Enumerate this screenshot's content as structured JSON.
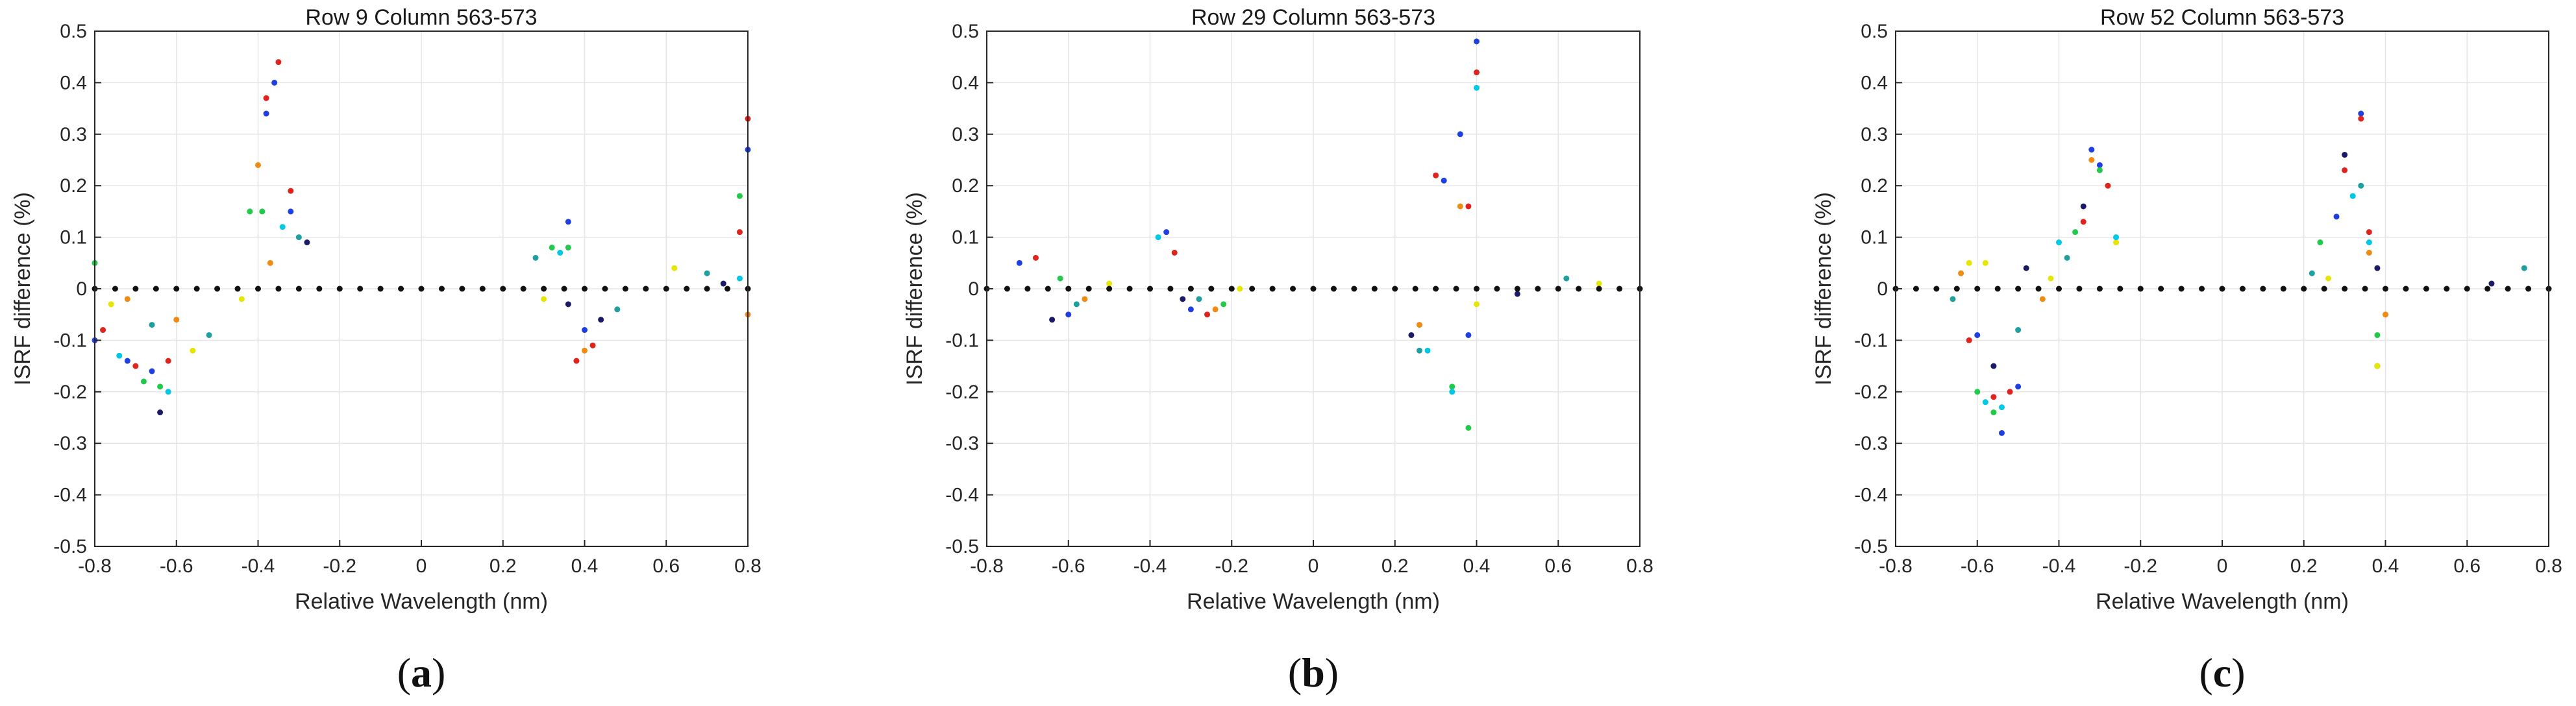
{
  "chart_data": [
    {
      "type": "scatter",
      "title": "Row 9 Column 563-573",
      "xlabel": "Relative Wavelength (nm)",
      "ylabel": "ISRF difference (%)",
      "xlim": [
        -0.8,
        0.8
      ],
      "ylim": [
        -0.5,
        0.5
      ],
      "xticks": [
        "-0.8",
        "-0.6",
        "-0.4",
        "-0.2",
        "0",
        "0.2",
        "0.4",
        "0.6",
        "0.8"
      ],
      "yticks": [
        "0.5",
        "0.4",
        "0.3",
        "0.2",
        "0.1",
        "0",
        "-0.1",
        "-0.2",
        "-0.3",
        "-0.4",
        "-0.5"
      ],
      "grid": true,
      "caption": "a",
      "series": [
        {
          "name": "blue",
          "color": "#1f3fe0",
          "x": [
            -0.8,
            -0.72,
            -0.66,
            -0.38,
            -0.36,
            -0.32,
            0.36,
            0.4,
            0.8
          ],
          "y": [
            -0.1,
            -0.14,
            -0.16,
            0.34,
            0.4,
            0.15,
            0.13,
            -0.08,
            0.27
          ]
        },
        {
          "name": "red",
          "color": "#e0231c",
          "x": [
            -0.78,
            -0.7,
            -0.62,
            -0.38,
            -0.35,
            -0.32,
            0.38,
            0.42,
            0.78,
            0.8
          ],
          "y": [
            -0.08,
            -0.15,
            -0.14,
            0.37,
            0.44,
            0.19,
            -0.14,
            -0.11,
            0.11,
            0.33
          ]
        },
        {
          "name": "green",
          "color": "#22c94a",
          "x": [
            -0.8,
            -0.68,
            -0.64,
            -0.42,
            -0.39,
            0.32,
            0.36,
            0.78
          ],
          "y": [
            0.05,
            -0.18,
            -0.19,
            0.15,
            0.15,
            0.08,
            0.08,
            0.18
          ]
        },
        {
          "name": "orange",
          "color": "#f08a10",
          "x": [
            -0.72,
            -0.6,
            -0.4,
            -0.37,
            0.4,
            0.8
          ],
          "y": [
            -0.02,
            -0.06,
            0.24,
            0.05,
            -0.12,
            -0.05
          ]
        },
        {
          "name": "yellow",
          "color": "#e6e600",
          "x": [
            -0.76,
            -0.56,
            -0.44,
            0.3,
            0.62
          ],
          "y": [
            -0.03,
            -0.12,
            -0.02,
            -0.02,
            0.04
          ]
        },
        {
          "name": "cyan",
          "color": "#00c8e6",
          "x": [
            -0.74,
            -0.62,
            -0.34,
            0.34,
            0.78
          ],
          "y": [
            -0.13,
            -0.2,
            0.12,
            0.07,
            0.02
          ]
        },
        {
          "name": "teal",
          "color": "#1ea0a0",
          "x": [
            -0.66,
            -0.52,
            -0.3,
            0.28,
            0.48,
            0.7
          ],
          "y": [
            -0.07,
            -0.09,
            0.1,
            0.06,
            -0.04,
            0.03
          ]
        },
        {
          "name": "navy",
          "color": "#1a1a66",
          "x": [
            -0.64,
            -0.28,
            0.36,
            0.44,
            0.74
          ],
          "y": [
            -0.24,
            0.09,
            -0.03,
            -0.06,
            0.01
          ]
        },
        {
          "name": "black",
          "color": "#111111",
          "x": [
            -0.8,
            -0.75,
            -0.7,
            -0.65,
            -0.6,
            -0.55,
            -0.5,
            -0.45,
            -0.4,
            -0.35,
            -0.3,
            -0.25,
            -0.2,
            -0.15,
            -0.1,
            -0.05,
            0,
            0.05,
            0.1,
            0.15,
            0.2,
            0.25,
            0.3,
            0.35,
            0.4,
            0.45,
            0.5,
            0.55,
            0.6,
            0.65,
            0.7,
            0.75,
            0.8
          ],
          "y": [
            0,
            0,
            0,
            0,
            0,
            0,
            0,
            0,
            0,
            0,
            0,
            0,
            0,
            0,
            0,
            0,
            0,
            0,
            0,
            0,
            0,
            0,
            0,
            0,
            0,
            0,
            0,
            0,
            0,
            0,
            0,
            0,
            0
          ]
        }
      ]
    },
    {
      "type": "scatter",
      "title": "Row 29 Column 563-573",
      "xlabel": "Relative Wavelength (nm)",
      "ylabel": "ISRF difference (%)",
      "xlim": [
        -0.8,
        0.8
      ],
      "ylim": [
        -0.5,
        0.5
      ],
      "xticks": [
        "-0.8",
        "-0.6",
        "-0.4",
        "-0.2",
        "0",
        "0.2",
        "0.4",
        "0.6",
        "0.8"
      ],
      "yticks": [
        "0.5",
        "0.4",
        "0.3",
        "0.2",
        "0.1",
        "0",
        "-0.1",
        "-0.2",
        "-0.3",
        "-0.4",
        "-0.5"
      ],
      "grid": true,
      "caption": "b",
      "series": [
        {
          "name": "blue",
          "color": "#1f3fe0",
          "x": [
            -0.72,
            -0.6,
            -0.36,
            -0.3,
            0.32,
            0.36,
            0.38,
            0.4
          ],
          "y": [
            0.05,
            -0.05,
            0.11,
            -0.04,
            0.21,
            0.3,
            -0.09,
            0.48
          ]
        },
        {
          "name": "red",
          "color": "#e0231c",
          "x": [
            -0.68,
            -0.34,
            -0.26,
            0.3,
            0.38,
            0.4
          ],
          "y": [
            0.06,
            0.07,
            -0.05,
            0.22,
            0.16,
            0.42
          ]
        },
        {
          "name": "green",
          "color": "#22c94a",
          "x": [
            -0.62,
            -0.22,
            0.34,
            0.38
          ],
          "y": [
            0.02,
            -0.03,
            -0.19,
            -0.27
          ]
        },
        {
          "name": "orange",
          "color": "#f08a10",
          "x": [
            -0.56,
            -0.24,
            0.26,
            0.36
          ],
          "y": [
            -0.02,
            -0.04,
            -0.07,
            0.16
          ]
        },
        {
          "name": "yellow",
          "color": "#e6e600",
          "x": [
            -0.5,
            -0.18,
            0.4,
            0.7
          ],
          "y": [
            0.01,
            0.0,
            -0.03,
            0.01
          ]
        },
        {
          "name": "cyan",
          "color": "#00c8e6",
          "x": [
            -0.38,
            0.28,
            0.34,
            0.4
          ],
          "y": [
            0.1,
            -0.12,
            -0.2,
            0.39
          ]
        },
        {
          "name": "teal",
          "color": "#1ea0a0",
          "x": [
            -0.58,
            -0.28,
            0.26,
            0.62
          ],
          "y": [
            -0.03,
            -0.02,
            -0.12,
            0.02
          ]
        },
        {
          "name": "navy",
          "color": "#1a1a66",
          "x": [
            -0.64,
            -0.32,
            0.24,
            0.5
          ],
          "y": [
            -0.06,
            -0.02,
            -0.09,
            -0.01
          ]
        },
        {
          "name": "black",
          "color": "#111111",
          "x": [
            -0.8,
            -0.75,
            -0.7,
            -0.65,
            -0.6,
            -0.55,
            -0.5,
            -0.45,
            -0.4,
            -0.35,
            -0.3,
            -0.25,
            -0.2,
            -0.15,
            -0.1,
            -0.05,
            0,
            0.05,
            0.1,
            0.15,
            0.2,
            0.25,
            0.3,
            0.35,
            0.4,
            0.45,
            0.5,
            0.55,
            0.6,
            0.65,
            0.7,
            0.75,
            0.8
          ],
          "y": [
            0,
            0,
            0,
            0,
            0,
            0,
            0,
            0,
            0,
            0,
            0,
            0,
            0,
            0,
            0,
            0,
            0,
            0,
            0,
            0,
            0,
            0,
            0,
            0,
            0,
            0,
            0,
            0,
            0,
            0,
            0,
            0,
            0
          ]
        }
      ]
    },
    {
      "type": "scatter",
      "title": "Row 52 Column 563-573",
      "xlabel": "Relative Wavelength (nm)",
      "ylabel": "ISRF difference (%)",
      "xlim": [
        -0.8,
        0.8
      ],
      "ylim": [
        -0.5,
        0.5
      ],
      "xticks": [
        "-0.8",
        "-0.6",
        "-0.4",
        "-0.2",
        "0",
        "0.2",
        "0.4",
        "0.6",
        "0.8"
      ],
      "yticks": [
        "0.5",
        "0.4",
        "0.3",
        "0.2",
        "0.1",
        "0",
        "-0.1",
        "-0.2",
        "-0.3",
        "-0.4",
        "-0.5"
      ],
      "grid": true,
      "caption": "c",
      "series": [
        {
          "name": "blue",
          "color": "#1f3fe0",
          "x": [
            -0.6,
            -0.54,
            -0.5,
            -0.32,
            -0.3,
            0.28,
            0.34,
            0.38
          ],
          "y": [
            -0.09,
            -0.28,
            -0.19,
            0.27,
            0.24,
            0.14,
            0.34,
            -0.15
          ]
        },
        {
          "name": "red",
          "color": "#e0231c",
          "x": [
            -0.62,
            -0.56,
            -0.52,
            -0.34,
            -0.28,
            0.3,
            0.34,
            0.36
          ],
          "y": [
            -0.1,
            -0.21,
            -0.2,
            0.13,
            0.2,
            0.23,
            0.33,
            0.11
          ]
        },
        {
          "name": "green",
          "color": "#22c94a",
          "x": [
            -0.6,
            -0.56,
            -0.36,
            -0.3,
            0.24,
            0.38
          ],
          "y": [
            -0.2,
            -0.24,
            0.11,
            0.23,
            0.09,
            -0.09
          ]
        },
        {
          "name": "orange",
          "color": "#f08a10",
          "x": [
            -0.64,
            -0.44,
            -0.32,
            0.36,
            0.4
          ],
          "y": [
            0.03,
            -0.02,
            0.25,
            0.07,
            -0.05
          ]
        },
        {
          "name": "yellow",
          "color": "#e6e600",
          "x": [
            -0.62,
            -0.58,
            -0.42,
            -0.26,
            0.26,
            0.38
          ],
          "y": [
            0.05,
            0.05,
            0.02,
            0.09,
            0.02,
            -0.15
          ]
        },
        {
          "name": "cyan",
          "color": "#00c8e6",
          "x": [
            -0.58,
            -0.54,
            -0.4,
            -0.26,
            0.32,
            0.36
          ],
          "y": [
            -0.22,
            -0.23,
            0.09,
            0.1,
            0.18,
            0.09
          ]
        },
        {
          "name": "teal",
          "color": "#1ea0a0",
          "x": [
            -0.66,
            -0.5,
            -0.38,
            0.22,
            0.34,
            0.74
          ],
          "y": [
            -0.02,
            -0.08,
            0.06,
            0.03,
            0.2,
            0.04
          ]
        },
        {
          "name": "navy",
          "color": "#1a1a66",
          "x": [
            -0.56,
            -0.48,
            -0.34,
            0.3,
            0.38,
            0.66
          ],
          "y": [
            -0.15,
            0.04,
            0.16,
            0.26,
            0.04,
            0.01
          ]
        },
        {
          "name": "black",
          "color": "#111111",
          "x": [
            -0.8,
            -0.75,
            -0.7,
            -0.65,
            -0.6,
            -0.55,
            -0.5,
            -0.45,
            -0.4,
            -0.35,
            -0.3,
            -0.25,
            -0.2,
            -0.15,
            -0.1,
            -0.05,
            0,
            0.05,
            0.1,
            0.15,
            0.2,
            0.25,
            0.3,
            0.35,
            0.4,
            0.45,
            0.5,
            0.55,
            0.6,
            0.65,
            0.7,
            0.75,
            0.8
          ],
          "y": [
            0,
            0,
            0,
            0,
            0,
            0,
            0,
            0,
            0,
            0,
            0,
            0,
            0,
            0,
            0,
            0,
            0,
            0,
            0,
            0,
            0,
            0,
            0,
            0,
            0,
            0,
            0,
            0,
            0,
            0,
            0,
            0,
            0
          ]
        }
      ]
    }
  ]
}
